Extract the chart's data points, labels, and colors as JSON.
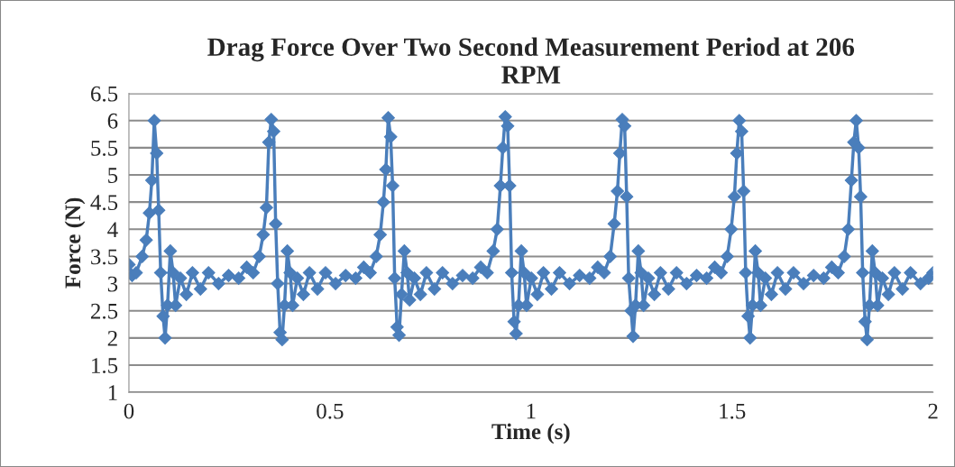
{
  "chart_data": {
    "type": "line",
    "title": "Drag Force Over Two Second Measurement Period at 206\nRPM",
    "xlabel": "Time (s)",
    "ylabel": "Force (N)",
    "xlim": [
      0,
      2
    ],
    "xticks": [
      0,
      0.5,
      1,
      1.5,
      2
    ],
    "ylim": [
      1,
      6.5
    ],
    "yticks": [
      1,
      1.5,
      2,
      2.5,
      3,
      3.5,
      4,
      4.5,
      5,
      5.5,
      6,
      6.5
    ],
    "grid": "y",
    "legend": false,
    "marker": "diamond",
    "line_style": "solid",
    "series": [
      {
        "color": "#4a7ebb",
        "x": [
          0,
          0.008,
          0.018,
          0.033,
          0.043,
          0.051,
          0.057,
          0.063,
          0.069,
          0.074,
          0.079,
          0.085,
          0.09,
          0.096,
          0.103,
          0.11,
          0.116,
          0.128,
          0.143,
          0.158,
          0.178,
          0.198,
          0.223,
          0.248,
          0.273,
          0.293,
          0.309,
          0.324,
          0.334,
          0.342,
          0.348,
          0.354,
          0.36,
          0.365,
          0.37,
          0.376,
          0.381,
          0.387,
          0.394,
          0.401,
          0.407,
          0.419,
          0.434,
          0.449,
          0.469,
          0.489,
          0.514,
          0.539,
          0.564,
          0.584,
          0.6,
          0.615,
          0.625,
          0.633,
          0.639,
          0.645,
          0.651,
          0.656,
          0.661,
          0.667,
          0.672,
          0.678,
          0.685,
          0.692,
          0.698,
          0.71,
          0.725,
          0.74,
          0.76,
          0.78,
          0.805,
          0.83,
          0.855,
          0.875,
          0.891,
          0.906,
          0.916,
          0.924,
          0.93,
          0.936,
          0.942,
          0.947,
          0.952,
          0.958,
          0.963,
          0.969,
          0.976,
          0.983,
          0.989,
          1.001,
          1.016,
          1.031,
          1.051,
          1.071,
          1.096,
          1.121,
          1.146,
          1.166,
          1.182,
          1.197,
          1.207,
          1.215,
          1.221,
          1.227,
          1.233,
          1.238,
          1.243,
          1.249,
          1.254,
          1.26,
          1.267,
          1.274,
          1.28,
          1.292,
          1.307,
          1.322,
          1.342,
          1.362,
          1.387,
          1.412,
          1.437,
          1.457,
          1.473,
          1.488,
          1.498,
          1.506,
          1.512,
          1.518,
          1.524,
          1.529,
          1.534,
          1.54,
          1.545,
          1.551,
          1.558,
          1.565,
          1.571,
          1.583,
          1.598,
          1.613,
          1.633,
          1.653,
          1.678,
          1.703,
          1.728,
          1.748,
          1.764,
          1.779,
          1.789,
          1.797,
          1.803,
          1.809,
          1.815,
          1.82,
          1.825,
          1.831,
          1.836,
          1.842,
          1.849,
          1.856,
          1.862,
          1.874,
          1.889,
          1.904,
          1.924,
          1.944,
          1.969,
          1.989,
          2.0
        ],
        "values": [
          3.35,
          3.15,
          3.2,
          3.5,
          3.8,
          4.3,
          4.9,
          6.0,
          5.4,
          4.35,
          3.2,
          2.4,
          2.0,
          2.6,
          3.6,
          3.2,
          2.6,
          3.1,
          2.8,
          3.2,
          2.9,
          3.2,
          3.0,
          3.15,
          3.1,
          3.3,
          3.2,
          3.5,
          3.9,
          4.4,
          5.6,
          6.02,
          5.8,
          4.1,
          3.0,
          2.1,
          1.97,
          2.6,
          3.6,
          3.2,
          2.6,
          3.1,
          2.8,
          3.2,
          2.9,
          3.2,
          3.0,
          3.15,
          3.1,
          3.3,
          3.2,
          3.5,
          3.9,
          4.5,
          5.1,
          6.05,
          5.7,
          4.8,
          3.1,
          2.2,
          2.05,
          2.8,
          3.6,
          3.2,
          2.7,
          3.1,
          2.8,
          3.2,
          2.9,
          3.2,
          3.0,
          3.15,
          3.1,
          3.3,
          3.2,
          3.6,
          4.0,
          4.8,
          5.5,
          6.07,
          5.9,
          4.8,
          3.2,
          2.3,
          2.08,
          2.6,
          3.6,
          3.2,
          2.6,
          3.1,
          2.8,
          3.2,
          2.9,
          3.2,
          3.0,
          3.15,
          3.1,
          3.3,
          3.2,
          3.5,
          4.1,
          4.7,
          5.4,
          6.02,
          5.9,
          4.6,
          3.1,
          2.5,
          2.03,
          2.6,
          3.6,
          3.2,
          2.6,
          3.1,
          2.8,
          3.2,
          2.9,
          3.2,
          3.0,
          3.15,
          3.1,
          3.3,
          3.2,
          3.5,
          4.0,
          4.6,
          5.4,
          6.0,
          5.8,
          4.7,
          3.2,
          2.4,
          2.0,
          2.6,
          3.6,
          3.2,
          2.6,
          3.1,
          2.8,
          3.2,
          2.9,
          3.2,
          3.0,
          3.15,
          3.1,
          3.3,
          3.2,
          3.5,
          4.0,
          4.9,
          5.6,
          6.0,
          5.5,
          4.6,
          3.2,
          2.3,
          1.97,
          2.6,
          3.6,
          3.2,
          2.6,
          3.1,
          2.8,
          3.2,
          2.9,
          3.2,
          3.0,
          3.1,
          3.2
        ]
      }
    ]
  }
}
